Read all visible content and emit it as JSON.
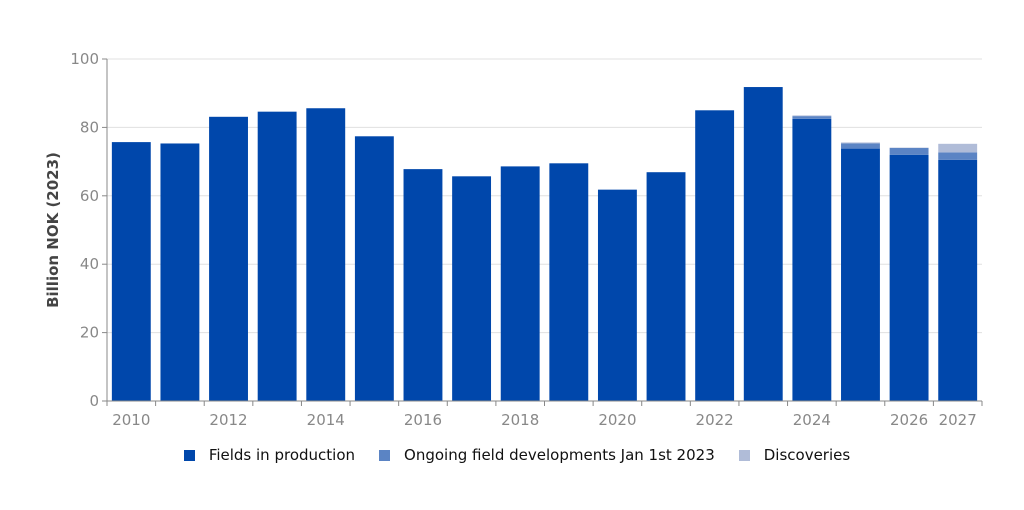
{
  "chart_data": {
    "type": "bar",
    "stacked": true,
    "ylabel": "Billion NOK (2023)",
    "ylim": [
      0,
      100
    ],
    "yticks": [
      0,
      20,
      40,
      60,
      80,
      100
    ],
    "grid": true,
    "legend_position": "bottom",
    "categories": [
      "2010",
      "2011",
      "2012",
      "2013",
      "2014",
      "2015",
      "2016",
      "2017",
      "2018",
      "2019",
      "2020",
      "2021",
      "2022",
      "2023",
      "2024",
      "2025",
      "2026",
      "2027"
    ],
    "xtick_labels": [
      "2010",
      "",
      "2012",
      "",
      "2014",
      "",
      "2016",
      "",
      "2018",
      "",
      "2020",
      "",
      "2022",
      "",
      "2024",
      "",
      "2026",
      "2027"
    ],
    "series": [
      {
        "name": "Fields in production",
        "color": "#0047ab",
        "values": [
          75.7,
          75.3,
          83.1,
          84.6,
          85.6,
          77.4,
          67.8,
          65.7,
          68.6,
          69.5,
          61.8,
          66.9,
          85.0,
          91.8,
          82.5,
          73.8,
          72.0,
          70.5
        ]
      },
      {
        "name": "Ongoing field developments Jan 1st 2023",
        "color": "#5b84c4",
        "values": [
          0,
          0,
          0,
          0,
          0,
          0,
          0,
          0,
          0,
          0,
          0,
          0,
          0,
          0,
          0.8,
          1.5,
          2.0,
          2.2
        ]
      },
      {
        "name": "Discoveries",
        "color": "#b0bcd8",
        "values": [
          0,
          0,
          0,
          0,
          0,
          0,
          0,
          0,
          0,
          0,
          0,
          0,
          0,
          0,
          0.2,
          0.3,
          0.1,
          2.5
        ]
      }
    ]
  }
}
